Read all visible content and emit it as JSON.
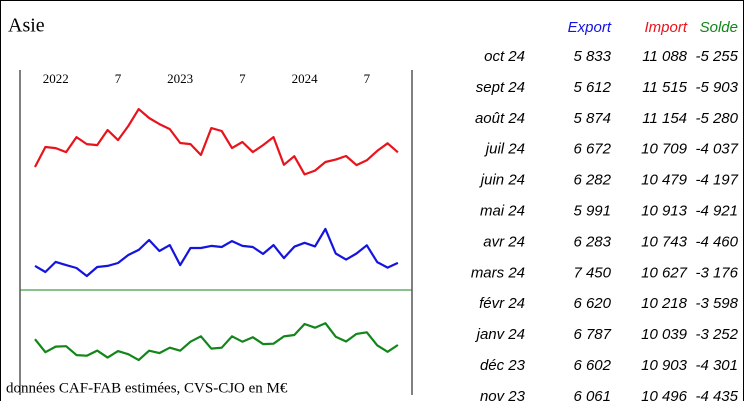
{
  "chart_data": {
    "type": "line",
    "title": "Asie",
    "note": "données CAF-FAB estimées, CVS-CJO en M€",
    "categories": [
      null,
      null,
      "2022",
      null,
      null,
      null,
      null,
      null,
      "7",
      null,
      null,
      null,
      null,
      null,
      "2023",
      null,
      null,
      null,
      null,
      null,
      "7",
      null,
      null,
      null,
      null,
      null,
      "2024",
      null,
      null,
      null,
      null,
      null,
      "7",
      null,
      null,
      null
    ],
    "ylim": [
      -300,
      15000
    ],
    "y2lim": [
      -9740,
      21000
    ],
    "series": [
      {
        "name": "Import",
        "color": "#e8141c",
        "values": [
          10390,
          11340,
          11290,
          11100,
          11810,
          11480,
          11430,
          12150,
          11670,
          12340,
          13140,
          12720,
          12430,
          12190,
          11530,
          11480,
          10960,
          12240,
          12100,
          11290,
          11580,
          11100,
          11430,
          11810,
          10496,
          10903,
          10039,
          10218,
          10627,
          10743,
          10913,
          10479,
          10709,
          11154,
          11515,
          11088
        ]
      },
      {
        "name": "Export",
        "color": "#1414e0",
        "values": [
          5690,
          5400,
          5880,
          5730,
          5590,
          5210,
          5640,
          5690,
          5830,
          6210,
          6450,
          6920,
          6400,
          6680,
          5730,
          6540,
          6540,
          6640,
          6590,
          6870,
          6640,
          6590,
          6260,
          6680,
          6061,
          6602,
          6787,
          6620,
          7450,
          6283,
          5991,
          6282,
          6672,
          5874,
          5612,
          5833
        ]
      },
      {
        "name": "Solde",
        "color": "#12861a",
        "axis": "y2",
        "values": [
          -4700,
          -5940,
          -5410,
          -5370,
          -6220,
          -6270,
          -5790,
          -6460,
          -5840,
          -6130,
          -6690,
          -5800,
          -6030,
          -5510,
          -5800,
          -4940,
          -4420,
          -5600,
          -5510,
          -4420,
          -4940,
          -4510,
          -5170,
          -5130,
          -4435,
          -4301,
          -3252,
          -3598,
          -3176,
          -4460,
          -4921,
          -4197,
          -4037,
          -5280,
          -5903,
          -5255
        ]
      }
    ],
    "y2zero_line": true
  },
  "table": {
    "header": [
      "Export",
      "Import",
      "Solde"
    ],
    "rows": [
      [
        "oct 24",
        "5 833",
        "11 088",
        "-5 255"
      ],
      [
        "sept 24",
        "5 612",
        "11 515",
        "-5 903"
      ],
      [
        "août 24",
        "5 874",
        "11 154",
        "-5 280"
      ],
      [
        "juil 24",
        "6 672",
        "10 709",
        "-4 037"
      ],
      [
        "juin 24",
        "6 282",
        "10 479",
        "-4 197"
      ],
      [
        "mai 24",
        "5 991",
        "10 913",
        "-4 921"
      ],
      [
        "avr 24",
        "6 283",
        "10 743",
        "-4 460"
      ],
      [
        "mars 24",
        "7 450",
        "10 627",
        "-3 176"
      ],
      [
        "févr 24",
        "6 620",
        "10 218",
        "-3 598"
      ],
      [
        "janv 24",
        "6 787",
        "10 039",
        "-3 252"
      ],
      [
        "déc 23",
        "6 602",
        "10 903",
        "-4 301"
      ],
      [
        "nov 23",
        "6 061",
        "10 496",
        "-4 435"
      ]
    ]
  }
}
